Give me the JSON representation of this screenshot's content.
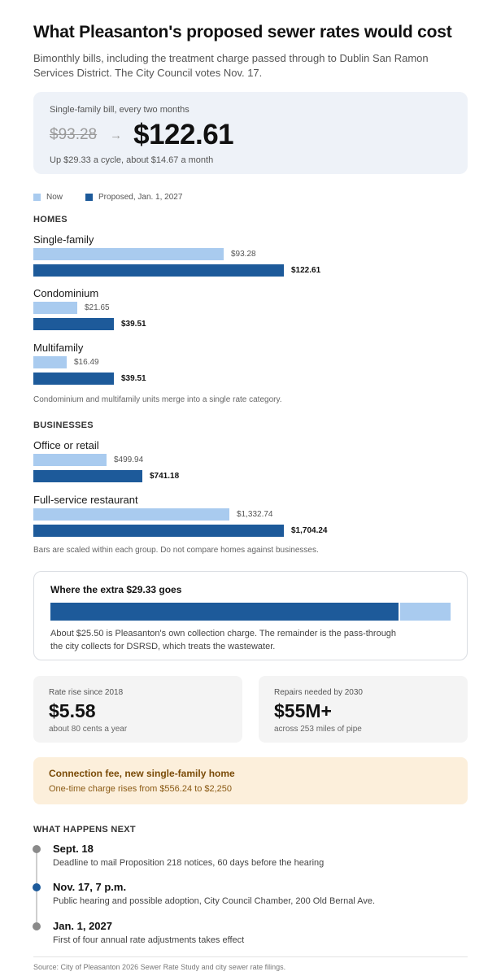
{
  "header": {
    "title": "What Pleasanton's proposed sewer rates would cost",
    "subtitle": "Bimonthly bills, including the treatment charge passed through to Dublin San Ramon Services District. The City Council votes Nov. 17."
  },
  "hero": {
    "label": "Single-family bill, every two months",
    "old_value": "$93.28",
    "arrow": "→",
    "new_value": "$122.61",
    "note": "Up $29.33 a cycle, about $14.67 a month"
  },
  "legend": {
    "now": "Now",
    "proposed": "Proposed, Jan. 1, 2027"
  },
  "colors": {
    "now": "#a9cbef",
    "proposed": "#1d5a9a"
  },
  "chart_data": [
    {
      "type": "bar",
      "group": "HOMES",
      "categories": [
        "Single-family",
        "Condominium",
        "Multifamily"
      ],
      "series": [
        {
          "name": "Now",
          "values": [
            93.28,
            21.65,
            16.49
          ],
          "labels": [
            "$93.28",
            "$21.65",
            "$16.49"
          ]
        },
        {
          "name": "Proposed, Jan. 1, 2027",
          "values": [
            122.61,
            39.51,
            39.51
          ],
          "labels": [
            "$122.61",
            "$39.51",
            "$39.51"
          ]
        }
      ],
      "note": "Condominium and multifamily units merge into a single rate category."
    },
    {
      "type": "bar",
      "group": "BUSINESSES",
      "categories": [
        "Office or retail",
        "Full-service restaurant"
      ],
      "series": [
        {
          "name": "Now",
          "values": [
            499.94,
            1332.74
          ],
          "labels": [
            "$499.94",
            "$1,332.74"
          ]
        },
        {
          "name": "Proposed, Jan. 1, 2027",
          "values": [
            741.18,
            1704.24
          ],
          "labels": [
            "$741.18",
            "$1,704.24"
          ]
        }
      ],
      "note": "Bars are scaled within each group. Do not compare homes against businesses."
    }
  ],
  "split": {
    "title": "Where the extra $29.33 goes",
    "total": 29.33,
    "collection": 25.5,
    "text": "About $25.50 is Pleasanton's own collection charge. The remainder is the pass-through the city collects for DSRSD, which treats the wastewater."
  },
  "stats": [
    {
      "label": "Rate rise since 2018",
      "value": "$5.58",
      "sub": "about 80 cents a year"
    },
    {
      "label": "Repairs needed by 2030",
      "value": "$55M+",
      "sub": "across 253 miles of pipe"
    }
  ],
  "fee": {
    "title": "Connection fee, new single-family home",
    "sub": "One-time charge rises from $556.24 to $2,250"
  },
  "timeline": {
    "heading": "WHAT HAPPENS NEXT",
    "events": [
      {
        "date": "Sept. 18",
        "desc": "Deadline to mail Proposition 218 notices, 60 days before the hearing",
        "color": "#8a8a8a"
      },
      {
        "date": "Nov. 17, 7 p.m.",
        "desc": "Public hearing and possible adoption, City Council Chamber, 200 Old Bernal Ave.",
        "color": "#1d5a9a"
      },
      {
        "date": "Jan. 1, 2027",
        "desc": "First of four annual rate adjustments takes effect",
        "color": "#8a8a8a"
      }
    ]
  },
  "source": "Source: City of Pleasanton 2026 Sewer Rate Study and city sewer rate filings."
}
